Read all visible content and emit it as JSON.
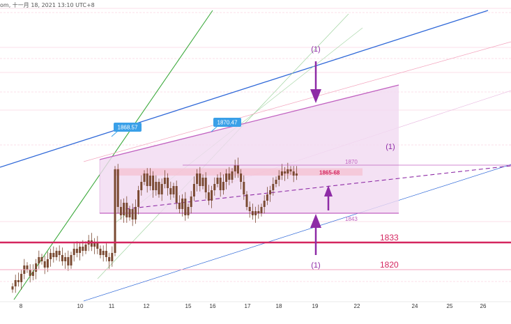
{
  "header": {
    "text": "om, 十一月 18, 2021 13:10 UTC+8"
  },
  "colors": {
    "background": "#ffffff",
    "candle": "#7a4a32",
    "zone_fill": "#f1d9f1",
    "zone_edge": "#c060c0",
    "purple": "#8e2ba6",
    "arrow": "#8e2ba6",
    "magenta_line": "#d4255f",
    "pink_line": "#f3a3bd",
    "blue_line": "#2f68d8",
    "green_line": "#3daa3d",
    "callout": "#3aa0e8",
    "resistance_band": "#f6c0d2"
  },
  "chart_data": {
    "type": "candlestick",
    "title": "",
    "x_axis": {
      "ticks": [
        "8",
        "10",
        "11",
        "12",
        "15",
        "16",
        "17",
        "18",
        "19",
        "22",
        "24",
        "25",
        "26"
      ]
    },
    "levels": [
      {
        "label": "1870",
        "value": 1870
      },
      {
        "label": "1865-68",
        "value": 1866.5
      },
      {
        "label": "1843",
        "value": 1843
      },
      {
        "label": "1833",
        "value": 1833
      },
      {
        "label": "1820",
        "value": 1820
      }
    ],
    "callouts": [
      {
        "label": "1868.57",
        "value": 1868.57
      },
      {
        "label": "1870.47",
        "value": 1870.47
      }
    ],
    "annotations": [
      "(1)",
      "(1)",
      "(1)"
    ],
    "series": [
      {
        "type": "close",
        "values": [
          1812,
          1815,
          1814,
          1818,
          1822,
          1820,
          1817,
          1819,
          1823,
          1826,
          1824,
          1821,
          1825,
          1828,
          1826,
          1829,
          1827,
          1824,
          1826,
          1822,
          1827,
          1830,
          1828,
          1831,
          1829,
          1832,
          1834,
          1831,
          1833,
          1830,
          1827,
          1829,
          1826,
          1824,
          1828,
          1868,
          1850,
          1846,
          1852,
          1845,
          1849,
          1844,
          1850,
          1858,
          1862,
          1866,
          1860,
          1865,
          1858,
          1862,
          1856,
          1861,
          1864,
          1859,
          1856,
          1860,
          1852,
          1849,
          1854,
          1846,
          1850,
          1855,
          1861,
          1866,
          1860,
          1864,
          1857,
          1853,
          1858,
          1861,
          1864,
          1858,
          1862,
          1866,
          1863,
          1867,
          1870,
          1866,
          1862,
          1856,
          1850,
          1848,
          1846,
          1848,
          1847,
          1850,
          1853,
          1856,
          1858,
          1861,
          1863,
          1865,
          1867,
          1866,
          1868,
          1867,
          1865,
          1866
        ]
      }
    ]
  }
}
